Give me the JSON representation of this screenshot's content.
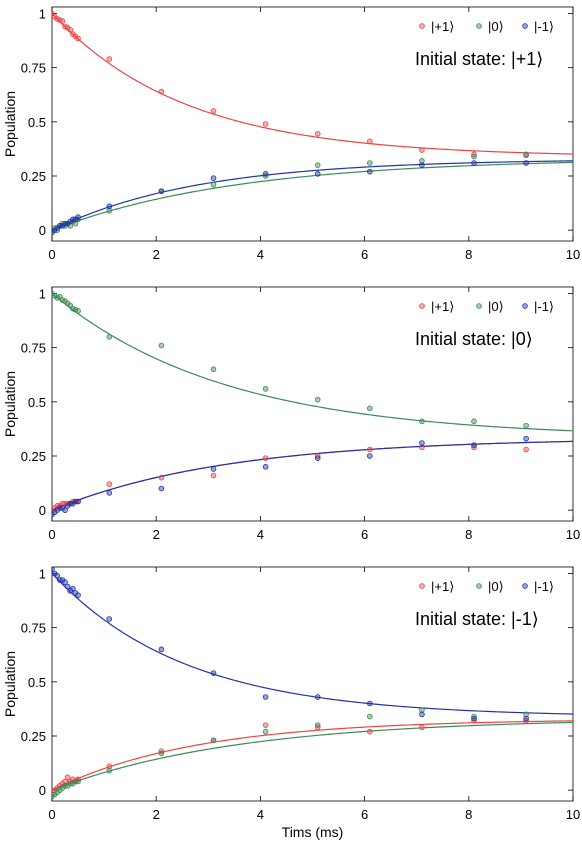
{
  "chart_data": [
    {
      "type": "scatter",
      "ylabel": "Population",
      "xlabel": "",
      "xlim": [
        0,
        10
      ],
      "ylim": [
        -0.05,
        1.03
      ],
      "x_ticks": [
        "0",
        "2",
        "4",
        "6",
        "8",
        "10"
      ],
      "y_ticks": [
        "0",
        "0.25",
        "0.5",
        "0.75",
        "1"
      ],
      "annotation": "Initial state: |+1⟩",
      "legend_position": "top-right",
      "series": [
        {
          "name": "|+1⟩",
          "color": "#ee4444",
          "x": [
            0,
            0.05,
            0.1,
            0.15,
            0.2,
            0.25,
            0.3,
            0.35,
            0.4,
            0.45,
            0.5,
            1.1,
            2.1,
            3.1,
            4.1,
            5.1,
            6.1,
            7.1,
            8.1,
            9.1
          ],
          "y": [
            1.0,
            0.985,
            0.975,
            0.97,
            0.965,
            0.94,
            0.935,
            0.925,
            0.905,
            0.895,
            0.885,
            0.79,
            0.64,
            0.55,
            0.49,
            0.445,
            0.41,
            0.37,
            0.35,
            0.345
          ],
          "fit": [
            1.0,
            0.338,
            0.39
          ]
        },
        {
          "name": "|0⟩",
          "color": "#3e8a55",
          "x": [
            0,
            0.05,
            0.1,
            0.15,
            0.2,
            0.25,
            0.3,
            0.35,
            0.4,
            0.45,
            0.5,
            1.1,
            2.1,
            3.1,
            4.1,
            5.1,
            6.1,
            7.1,
            8.1,
            9.1
          ],
          "y": [
            0.0,
            0.01,
            0.0,
            0.02,
            0.03,
            0.02,
            0.03,
            0.02,
            0.04,
            0.03,
            0.05,
            0.09,
            0.18,
            0.21,
            0.25,
            0.3,
            0.31,
            0.32,
            0.34,
            0.35
          ],
          "fit": [
            0.0,
            0.333,
            0.28
          ]
        },
        {
          "name": "|-1⟩",
          "color": "#2233aa",
          "x": [
            0,
            0.05,
            0.1,
            0.15,
            0.2,
            0.25,
            0.3,
            0.35,
            0.4,
            0.45,
            0.5,
            1.1,
            2.1,
            3.1,
            4.1,
            5.1,
            6.1,
            7.1,
            8.1,
            9.1
          ],
          "y": [
            -0.01,
            0.0,
            0.01,
            0.02,
            0.02,
            0.03,
            0.03,
            0.04,
            0.05,
            0.05,
            0.06,
            0.11,
            0.18,
            0.24,
            0.26,
            0.26,
            0.27,
            0.3,
            0.31,
            0.31
          ],
          "fit": [
            0.0,
            0.329,
            0.36
          ]
        }
      ]
    },
    {
      "type": "scatter",
      "ylabel": "Population",
      "xlabel": "",
      "xlim": [
        0,
        10
      ],
      "ylim": [
        -0.05,
        1.03
      ],
      "x_ticks": [
        "0",
        "2",
        "4",
        "6",
        "8",
        "10"
      ],
      "y_ticks": [
        "0",
        "0.25",
        "0.5",
        "0.75",
        "1"
      ],
      "annotation": "Initial state: |0⟩",
      "legend_position": "top-right",
      "series": [
        {
          "name": "|+1⟩",
          "color": "#ee4444",
          "x": [
            0,
            0.05,
            0.1,
            0.15,
            0.2,
            0.25,
            0.3,
            0.35,
            0.4,
            0.45,
            0.5,
            1.1,
            2.1,
            3.1,
            4.1,
            5.1,
            6.1,
            7.1,
            8.1,
            9.1
          ],
          "y": [
            0.0,
            0.01,
            0.02,
            0.02,
            0.03,
            0.03,
            0.03,
            0.03,
            0.04,
            0.04,
            0.04,
            0.12,
            0.15,
            0.16,
            0.24,
            0.25,
            0.28,
            0.29,
            0.29,
            0.28
          ],
          "fit": [
            0.0,
            0.334,
            0.3
          ]
        },
        {
          "name": "|0⟩",
          "color": "#3e8a55",
          "x": [
            0,
            0.05,
            0.1,
            0.15,
            0.2,
            0.25,
            0.3,
            0.35,
            0.4,
            0.45,
            0.5,
            1.1,
            2.1,
            3.1,
            4.1,
            5.1,
            6.1,
            7.1,
            8.1,
            9.1
          ],
          "y": [
            1.0,
            0.99,
            0.98,
            0.985,
            0.97,
            0.965,
            0.955,
            0.945,
            0.93,
            0.925,
            0.92,
            0.8,
            0.76,
            0.65,
            0.56,
            0.51,
            0.47,
            0.41,
            0.41,
            0.39
          ],
          "fit": [
            1.0,
            0.333,
            0.3
          ]
        },
        {
          "name": "|-1⟩",
          "color": "#2233aa",
          "x": [
            0,
            0.05,
            0.1,
            0.15,
            0.2,
            0.25,
            0.3,
            0.35,
            0.4,
            0.45,
            0.5,
            1.1,
            2.1,
            3.1,
            4.1,
            5.1,
            6.1,
            7.1,
            8.1,
            9.1
          ],
          "y": [
            -0.02,
            -0.01,
            0.0,
            0.01,
            0.01,
            0.0,
            0.02,
            0.03,
            0.03,
            0.04,
            0.04,
            0.08,
            0.1,
            0.19,
            0.2,
            0.24,
            0.25,
            0.31,
            0.3,
            0.33
          ],
          "fit": [
            0.0,
            0.334,
            0.3
          ]
        }
      ]
    },
    {
      "type": "scatter",
      "ylabel": "Population",
      "xlabel": "Tims (ms)",
      "xlim": [
        0,
        10
      ],
      "ylim": [
        -0.05,
        1.03
      ],
      "x_ticks": [
        "0",
        "2",
        "4",
        "6",
        "8",
        "10"
      ],
      "y_ticks": [
        "0",
        "0.25",
        "0.5",
        "0.75",
        "1"
      ],
      "annotation": "Initial state: |-1⟩",
      "legend_position": "top-right",
      "series": [
        {
          "name": "|+1⟩",
          "color": "#ee4444",
          "x": [
            0,
            0.05,
            0.1,
            0.15,
            0.2,
            0.25,
            0.3,
            0.35,
            0.4,
            0.45,
            0.5,
            1.1,
            2.1,
            3.1,
            4.1,
            5.1,
            6.1,
            7.1,
            8.1,
            9.1
          ],
          "y": [
            -0.02,
            0.0,
            0.01,
            0.02,
            0.03,
            0.04,
            0.06,
            0.04,
            0.05,
            0.04,
            0.05,
            0.11,
            0.18,
            0.23,
            0.3,
            0.29,
            0.27,
            0.29,
            0.32,
            0.32
          ],
          "fit": [
            0.0,
            0.329,
            0.36
          ]
        },
        {
          "name": "|0⟩",
          "color": "#3e8a55",
          "x": [
            0,
            0.05,
            0.1,
            0.15,
            0.2,
            0.25,
            0.3,
            0.35,
            0.4,
            0.45,
            0.5,
            1.1,
            2.1,
            3.1,
            4.1,
            5.1,
            6.1,
            7.1,
            8.1,
            9.1
          ],
          "y": [
            -0.03,
            -0.02,
            -0.01,
            0.0,
            0.01,
            0.02,
            0.02,
            0.03,
            0.03,
            0.04,
            0.04,
            0.09,
            0.17,
            0.23,
            0.27,
            0.3,
            0.34,
            0.37,
            0.34,
            0.35
          ],
          "fit": [
            0.0,
            0.333,
            0.28
          ]
        },
        {
          "name": "|-1⟩",
          "color": "#2233aa",
          "x": [
            0,
            0.05,
            0.1,
            0.15,
            0.2,
            0.25,
            0.3,
            0.35,
            0.4,
            0.45,
            0.5,
            1.1,
            2.1,
            3.1,
            4.1,
            5.1,
            6.1,
            7.1,
            8.1,
            9.1
          ],
          "y": [
            1.02,
            1.0,
            0.99,
            0.97,
            0.97,
            0.96,
            0.94,
            0.92,
            0.93,
            0.91,
            0.9,
            0.79,
            0.65,
            0.54,
            0.43,
            0.43,
            0.4,
            0.35,
            0.33,
            0.33
          ],
          "fit": [
            1.0,
            0.338,
            0.39
          ]
        }
      ]
    }
  ]
}
